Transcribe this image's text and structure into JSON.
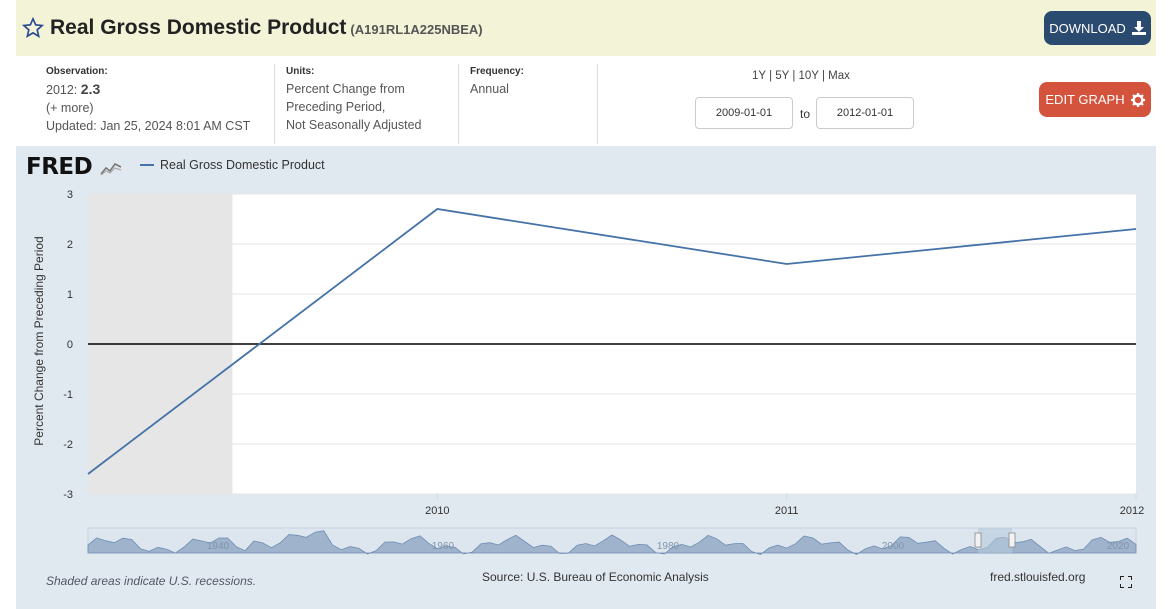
{
  "header": {
    "title": "Real Gross Domestic Product",
    "series_id": "(A191RL1A225NBEA)",
    "download_label": "DOWNLOAD",
    "favorite_icon": "star-outline-icon",
    "download_icon": "download-icon"
  },
  "meta": {
    "observation_label": "Observation:",
    "observation_date": "2012:",
    "observation_value": "2.3",
    "more_link": "(+ more)",
    "updated": "Updated: Jan 25, 2024 8:01 AM CST",
    "units_label": "Units:",
    "units_lines": [
      "Percent Change from",
      "Preceding Period,",
      "Not Seasonally Adjusted"
    ],
    "frequency_label": "Frequency:",
    "frequency_value": "Annual"
  },
  "controls": {
    "range_links": [
      "1Y",
      "5Y",
      "10Y",
      "Max"
    ],
    "start_date": "2009-01-01",
    "to_label": "to",
    "end_date": "2012-01-01",
    "edit_label": "EDIT GRAPH",
    "edit_icon": "gear-icon"
  },
  "footer": {
    "recession_note": "Shaded areas indicate U.S. recessions.",
    "source": "Source: U.S. Bureau of Economic Analysis",
    "site": "fred.stlouisfed.org",
    "fullscreen_icon": "fullscreen-icon"
  },
  "logo": {
    "text": "FRED"
  },
  "chart_data": {
    "type": "line",
    "title": "",
    "xlabel": "",
    "ylabel": "Percent Change from Preceding Period",
    "x": [
      "2009",
      "2010",
      "2011",
      "2012"
    ],
    "x_ticks": [
      "2010",
      "2011",
      "2012"
    ],
    "y_ticks": [
      "3",
      "2",
      "1",
      "0",
      "-1",
      "-2",
      "-3"
    ],
    "ylim": [
      -3,
      3
    ],
    "series": [
      {
        "name": "Real Gross Domestic Product",
        "values": [
          -2.6,
          2.7,
          1.6,
          2.3
        ],
        "color": "#4572a7"
      }
    ],
    "recession": {
      "start": "2009-01-01",
      "end": "2009-06-01",
      "color": "#e6e6e6"
    },
    "zero_line": true,
    "grid": true,
    "legend_position": "top-left",
    "navigator_labels": [
      "1940",
      "1960",
      "1980",
      "2000",
      "2020"
    ]
  }
}
